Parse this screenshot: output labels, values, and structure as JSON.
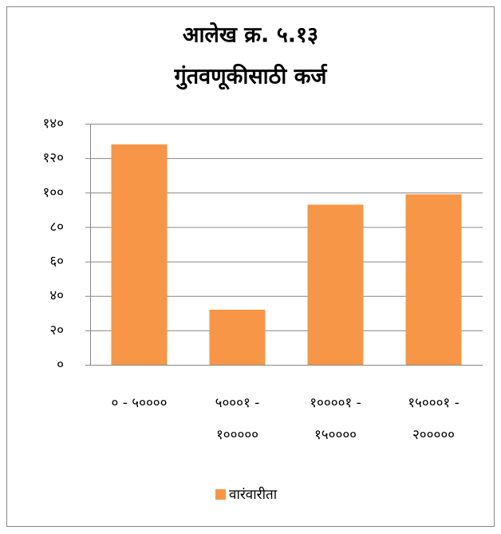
{
  "chart_data": {
    "type": "bar",
    "title": [
      "आलेख क्र.  ५.१३",
      "गुंतवणूकीसाठी कर्ज"
    ],
    "categories": [
      [
        "० - ५००००"
      ],
      [
        "५०००१ -",
        "१०००००"
      ],
      [
        "१००००१ -",
        "१५००००"
      ],
      [
        "१५०००१ -",
        "२०००००"
      ]
    ],
    "series": [
      {
        "name": "वारंवारीता",
        "color": "#f79646",
        "values": [
          128,
          32,
          93,
          99
        ]
      }
    ],
    "ylim": [
      0,
      140
    ],
    "yticks": [
      {
        "value": 0,
        "label": "०"
      },
      {
        "value": 20,
        "label": "२०"
      },
      {
        "value": 40,
        "label": "४०"
      },
      {
        "value": 60,
        "label": "६०"
      },
      {
        "value": 80,
        "label": "८०"
      },
      {
        "value": 100,
        "label": "१००"
      },
      {
        "value": 120,
        "label": "१२०"
      },
      {
        "value": 140,
        "label": "१४०"
      }
    ],
    "grid": true,
    "legend": "bottom"
  }
}
